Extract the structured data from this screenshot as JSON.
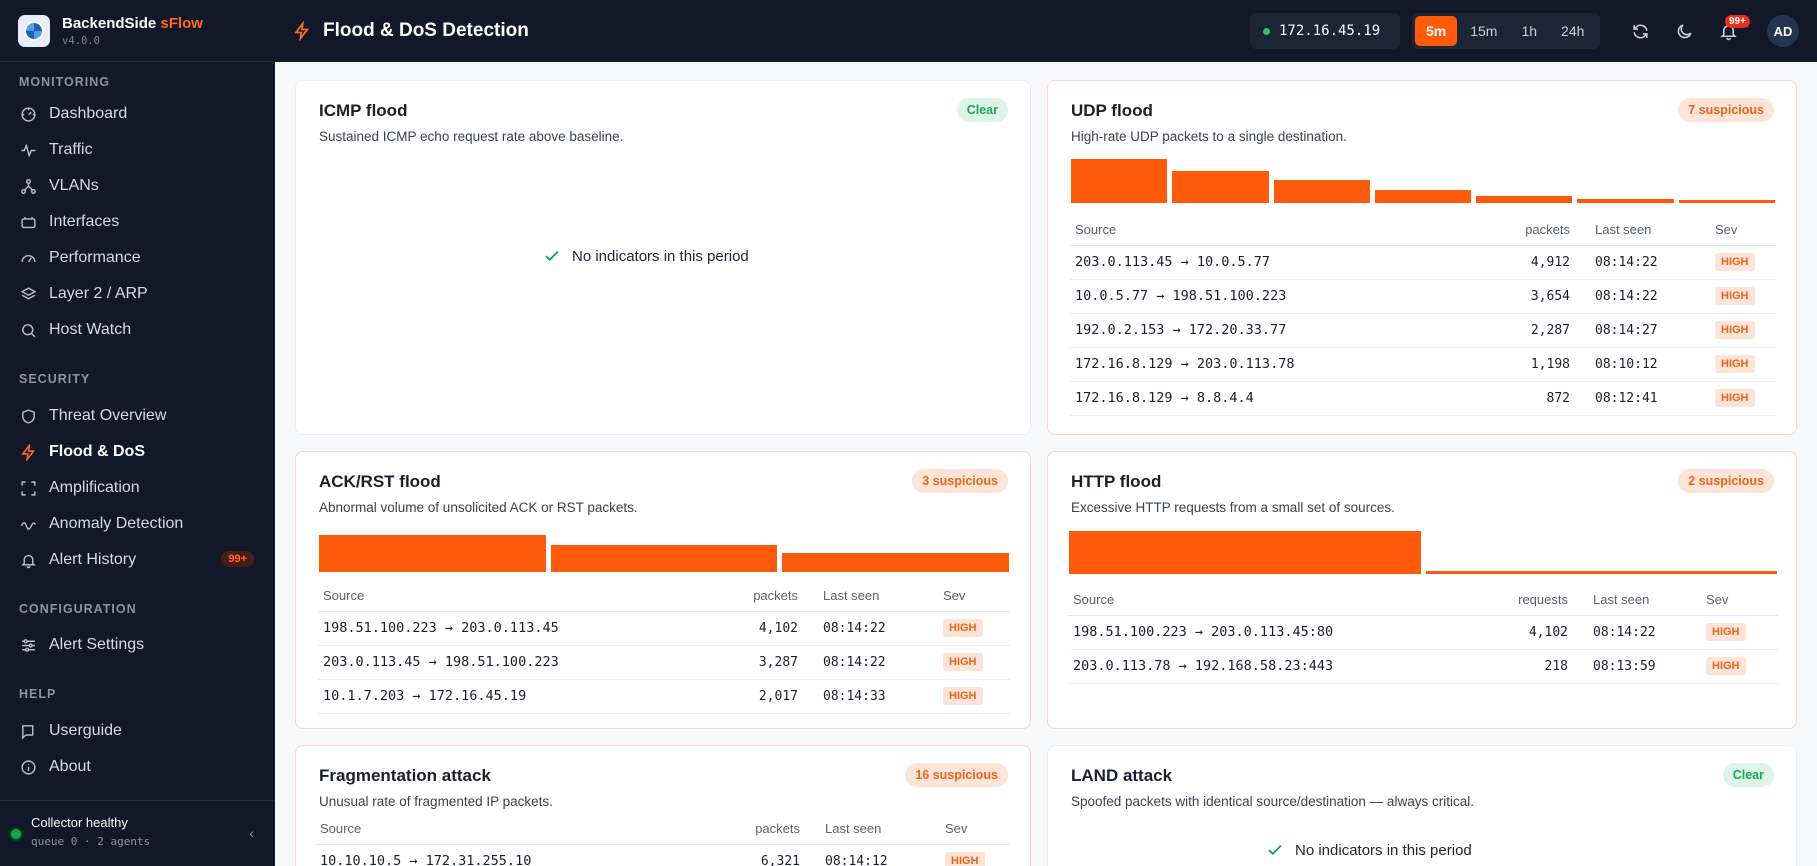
{
  "app": {
    "name": "BackendSide",
    "name_accent": "sFlow",
    "version": "v4.0.0"
  },
  "nav": {
    "sections": [
      {
        "label": "MONITORING",
        "items": [
          {
            "label": "Dashboard",
            "icon": "dashboard-icon"
          },
          {
            "label": "Traffic",
            "icon": "pulse-icon"
          },
          {
            "label": "VLANs",
            "icon": "network-icon"
          },
          {
            "label": "Interfaces",
            "icon": "interface-icon"
          },
          {
            "label": "Performance",
            "icon": "gauge-icon"
          },
          {
            "label": "Layer 2 / ARP",
            "icon": "layers-icon"
          },
          {
            "label": "Host Watch",
            "icon": "search-icon"
          }
        ]
      },
      {
        "label": "SECURITY",
        "items": [
          {
            "label": "Threat Overview",
            "icon": "shield-icon"
          },
          {
            "label": "Flood & DoS",
            "icon": "bolt-icon",
            "active": true
          },
          {
            "label": "Amplification",
            "icon": "expand-icon"
          },
          {
            "label": "Anomaly Detection",
            "icon": "wave-icon"
          },
          {
            "label": "Alert History",
            "icon": "bell-icon",
            "badge": "99+"
          }
        ]
      },
      {
        "label": "CONFIGURATION",
        "items": [
          {
            "label": "Alert Settings",
            "icon": "sliders-icon"
          }
        ]
      },
      {
        "label": "HELP",
        "items": [
          {
            "label": "Userguide",
            "icon": "book-icon"
          },
          {
            "label": "About",
            "icon": "info-icon"
          }
        ]
      }
    ]
  },
  "collector": {
    "title": "Collector healthy",
    "sub": "queue 0 · 2 agents"
  },
  "header": {
    "title": "Flood & DoS Detection",
    "agent_ip": "172.16.45.19",
    "ranges": [
      "5m",
      "15m",
      "1h",
      "24h"
    ],
    "active_range": "5m",
    "notifications": "99+",
    "avatar": "AD"
  },
  "empty_text": "No indicators in this period",
  "cards": {
    "icmp": {
      "title": "ICMP flood",
      "desc": "Sustained ICMP echo request rate above baseline.",
      "status": "Clear"
    },
    "udp": {
      "title": "UDP flood",
      "desc": "High-rate UDP packets to a single destination.",
      "status": "7 suspicious",
      "columns": [
        "Source",
        "packets",
        "Last seen",
        "Sev"
      ],
      "bars": [
        1.0,
        0.72,
        0.52,
        0.3,
        0.16,
        0.1,
        0.07
      ],
      "rows": [
        {
          "src": "203.0.113.45  →  10.0.5.77",
          "count": "4,912",
          "seen": "08:14:22",
          "sev": "HIGH"
        },
        {
          "src": "10.0.5.77  →  198.51.100.223",
          "count": "3,654",
          "seen": "08:14:22",
          "sev": "HIGH"
        },
        {
          "src": "192.0.2.153  →  172.20.33.77",
          "count": "2,287",
          "seen": "08:14:27",
          "sev": "HIGH"
        },
        {
          "src": "172.16.8.129  →  203.0.113.78",
          "count": "1,198",
          "seen": "08:10:12",
          "sev": "HIGH"
        },
        {
          "src": "172.16.8.129  →  8.8.4.4",
          "count": "872",
          "seen": "08:12:41",
          "sev": "HIGH"
        }
      ]
    },
    "ack": {
      "title": "ACK/RST flood",
      "desc": "Abnormal volume of unsolicited ACK or RST packets.",
      "status": "3 suspicious",
      "columns": [
        "Source",
        "packets",
        "Last seen",
        "Sev"
      ],
      "bars": [
        1.0,
        0.72,
        0.52
      ],
      "rows": [
        {
          "src": "198.51.100.223  →  203.0.113.45",
          "count": "4,102",
          "seen": "08:14:22",
          "sev": "HIGH"
        },
        {
          "src": "203.0.113.45  →  198.51.100.223",
          "count": "3,287",
          "seen": "08:14:22",
          "sev": "HIGH"
        },
        {
          "src": "10.1.7.203  →  172.16.45.19",
          "count": "2,017",
          "seen": "08:14:33",
          "sev": "HIGH"
        }
      ]
    },
    "http": {
      "title": "HTTP flood",
      "desc": "Excessive HTTP requests from a small set of sources.",
      "status": "2 suspicious",
      "columns": [
        "Source",
        "requests",
        "Last seen",
        "Sev"
      ],
      "bars": [
        1.0,
        0.08
      ],
      "rows": [
        {
          "src": "198.51.100.223  →  203.0.113.45:80",
          "count": "4,102",
          "seen": "08:14:22",
          "sev": "HIGH"
        },
        {
          "src": "203.0.113.78  →  192.168.58.23:443",
          "count": "218",
          "seen": "08:13:59",
          "sev": "HIGH"
        }
      ]
    },
    "frag": {
      "title": "Fragmentation attack",
      "desc": "Unusual rate of fragmented IP packets.",
      "status": "16 suspicious",
      "columns": [
        "Source",
        "packets",
        "Last seen",
        "Sev"
      ],
      "rows": [
        {
          "src": "10.10.10.5  →  172.31.255.10",
          "count": "6,321",
          "seen": "08:14:12",
          "sev": "HIGH"
        }
      ]
    },
    "land": {
      "title": "LAND attack",
      "desc": "Spoofed packets with identical source/destination — always critical.",
      "status": "Clear"
    }
  }
}
